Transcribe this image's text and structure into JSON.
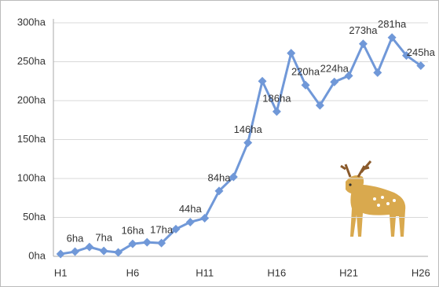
{
  "chart_data": {
    "type": "line",
    "categories": [
      "H1",
      null,
      null,
      null,
      null,
      "H6",
      null,
      null,
      null,
      null,
      "H11",
      null,
      null,
      null,
      null,
      "H16",
      null,
      null,
      null,
      null,
      "H21",
      null,
      null,
      null,
      null,
      "H26"
    ],
    "series": [
      {
        "color": "#7098d8",
        "values": [
          3,
          6,
          12,
          7,
          5,
          16,
          18,
          17,
          35,
          44,
          49,
          84,
          102,
          146,
          225,
          186,
          261,
          220,
          194,
          224,
          232,
          273,
          236,
          281,
          258,
          245
        ],
        "value_labels": [
          null,
          "6ha",
          null,
          "7ha",
          null,
          "16ha",
          null,
          "17ha",
          null,
          "44ha",
          null,
          "84ha",
          null,
          "146ha",
          null,
          "186ha",
          null,
          "220ha",
          null,
          "224ha",
          null,
          "273ha",
          null,
          "281ha",
          null,
          "245ha"
        ]
      }
    ],
    "ylim": [
      0,
      300
    ],
    "yticks": [
      {
        "value": 0,
        "label": "0ha"
      },
      {
        "value": 50,
        "label": "50ha"
      },
      {
        "value": 100,
        "label": "100ha"
      },
      {
        "value": 150,
        "label": "150ha"
      },
      {
        "value": 200,
        "label": "200ha"
      },
      {
        "value": 250,
        "label": "250ha"
      },
      {
        "value": 300,
        "label": "300ha"
      }
    ],
    "grid": true
  }
}
